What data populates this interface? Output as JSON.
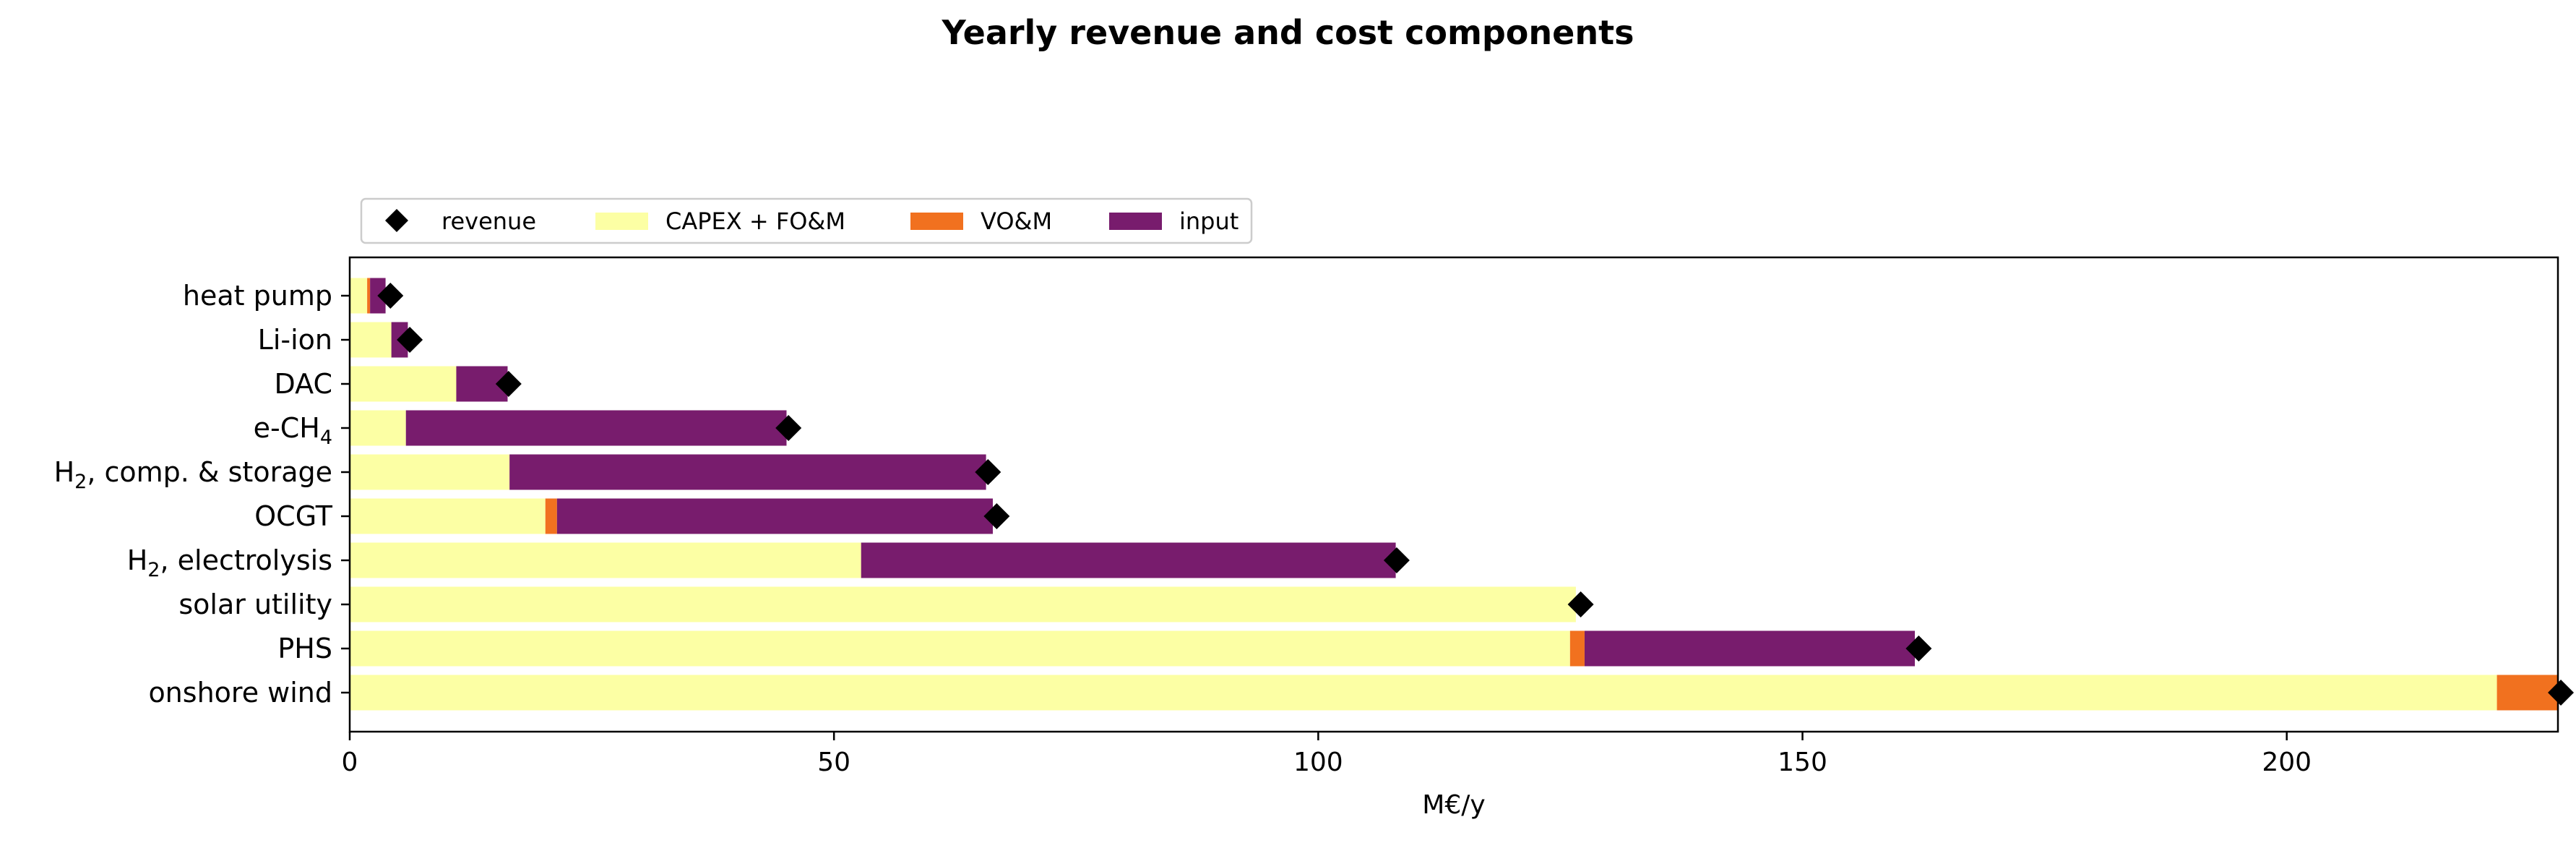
{
  "chart_data": {
    "type": "bar",
    "orientation": "horizontal",
    "stacked": true,
    "title": "Yearly revenue and cost components",
    "xlabel": "M€/y",
    "ylabel": "",
    "xlim": [
      0,
      228
    ],
    "xticks": [
      0,
      50,
      100,
      150,
      200
    ],
    "grid": false,
    "legend_position": "top-left, above plot",
    "categories": [
      {
        "main": "heat pump",
        "sub": "",
        "rest": ""
      },
      {
        "main": "Li-ion",
        "sub": "",
        "rest": ""
      },
      {
        "main": "DAC",
        "sub": "",
        "rest": ""
      },
      {
        "main": "e-CH",
        "sub": "4",
        "rest": ""
      },
      {
        "main": "H",
        "sub": "2",
        "rest": ", comp. & storage"
      },
      {
        "main": "OCGT",
        "sub": "",
        "rest": ""
      },
      {
        "main": "H",
        "sub": "2",
        "rest": ", electrolysis"
      },
      {
        "main": "solar utility",
        "sub": "",
        "rest": ""
      },
      {
        "main": "PHS",
        "sub": "",
        "rest": ""
      },
      {
        "main": "onshore wind",
        "sub": "",
        "rest": ""
      }
    ],
    "series": [
      {
        "name": "CAPEX + FO&M",
        "color": "#fcffa4",
        "values": [
          1.8,
          4.3,
          11.0,
          5.8,
          16.5,
          20.2,
          52.8,
          126.6,
          126.0,
          221.7
        ]
      },
      {
        "name": "VO&M",
        "color": "#f1711f",
        "values": [
          0.3,
          0.0,
          0.0,
          0.0,
          0.0,
          1.2,
          0.0,
          0.0,
          1.5,
          6.3
        ]
      },
      {
        "name": "input",
        "color": "#781c6d",
        "values": [
          1.6,
          1.7,
          5.3,
          39.3,
          49.2,
          45.0,
          55.2,
          0.0,
          34.1,
          0.0
        ]
      }
    ],
    "revenue": {
      "name": "revenue",
      "color": "#000000",
      "values": [
        4.2,
        6.2,
        16.4,
        45.3,
        65.9,
        66.8,
        108.1,
        127.1,
        162.0,
        228.3
      ]
    }
  }
}
